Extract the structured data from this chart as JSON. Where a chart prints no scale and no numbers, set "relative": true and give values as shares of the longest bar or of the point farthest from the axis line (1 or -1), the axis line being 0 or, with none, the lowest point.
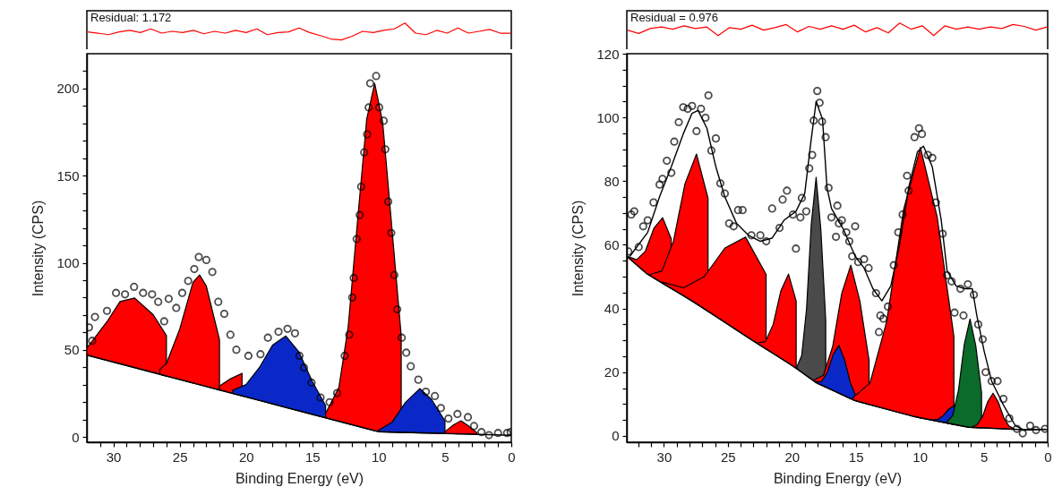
{
  "chart_data": [
    {
      "type": "line",
      "relative": true,
      "annotations": [
        "Residual: 1.172"
      ],
      "categories": [
        null,
        null,
        null,
        null,
        null,
        null,
        null,
        null,
        null,
        null,
        null,
        null,
        null,
        null,
        null,
        null,
        null,
        null,
        null,
        null,
        null,
        null,
        null,
        null,
        null,
        null,
        null,
        null,
        null,
        null,
        null,
        null,
        null,
        null,
        null,
        null,
        null,
        null,
        null,
        null,
        null
      ],
      "series": [
        {
          "color": "#ff0000",
          "values": [
            0.71,
            0.67,
            0.62,
            0.71,
            0.76,
            0.69,
            0.81,
            0.67,
            0.73,
            0.69,
            0.76,
            0.65,
            0.73,
            0.67,
            0.76,
            0.69,
            0.81,
            0.62,
            0.69,
            0.71,
            0.84,
            0.69,
            0.59,
            0.48,
            0.45,
            0.57,
            0.73,
            0.69,
            0.76,
            0.81,
            1,
            0.67,
            0.62,
            0.76,
            0.67,
            0.84,
            0.67,
            0.73,
            0.79,
            0.67,
            0.67
          ]
        }
      ]
    },
    {
      "type": "scatter",
      "xlabel": "Binding Energy (eV)",
      "ylabel": "Intensity (CPS)",
      "xlim": [
        32,
        0
      ],
      "ylim": [
        -3,
        220
      ],
      "xticks": [
        {
          "value": 31,
          "label": null
        },
        {
          "value": 30,
          "label": "30"
        },
        {
          "value": 29,
          "label": null
        },
        {
          "value": 28,
          "label": null
        },
        {
          "value": 27,
          "label": null
        },
        {
          "value": 26,
          "label": null
        },
        {
          "value": 25,
          "label": "25"
        },
        {
          "value": 24,
          "label": null
        },
        {
          "value": 23,
          "label": null
        },
        {
          "value": 22,
          "label": null
        },
        {
          "value": 21,
          "label": null
        },
        {
          "value": 20,
          "label": "20"
        },
        {
          "value": 19,
          "label": null
        },
        {
          "value": 18,
          "label": null
        },
        {
          "value": 17,
          "label": null
        },
        {
          "value": 16,
          "label": null
        },
        {
          "value": 15,
          "label": "15"
        },
        {
          "value": 14,
          "label": null
        },
        {
          "value": 13,
          "label": null
        },
        {
          "value": 12,
          "label": null
        },
        {
          "value": 11,
          "label": null
        },
        {
          "value": 10,
          "label": "10"
        },
        {
          "value": 9,
          "label": null
        },
        {
          "value": 8,
          "label": null
        },
        {
          "value": 7,
          "label": null
        },
        {
          "value": 6,
          "label": null
        },
        {
          "value": 5,
          "label": "5"
        },
        {
          "value": 4,
          "label": null
        },
        {
          "value": 3,
          "label": null
        },
        {
          "value": 2,
          "label": null
        },
        {
          "value": 1,
          "label": null
        },
        {
          "value": 0,
          "label": "0"
        }
      ],
      "yticks": [
        {
          "value": 0,
          "label": "0"
        },
        {
          "value": 10,
          "label": null
        },
        {
          "value": 20,
          "label": null
        },
        {
          "value": 30,
          "label": null
        },
        {
          "value": 40,
          "label": null
        },
        {
          "value": 50,
          "label": "50"
        },
        {
          "value": 60,
          "label": null
        },
        {
          "value": 70,
          "label": null
        },
        {
          "value": 80,
          "label": null
        },
        {
          "value": 90,
          "label": null
        },
        {
          "value": 100,
          "label": "100"
        },
        {
          "value": 110,
          "label": null
        },
        {
          "value": 120,
          "label": null
        },
        {
          "value": 130,
          "label": null
        },
        {
          "value": 140,
          "label": null
        },
        {
          "value": 150,
          "label": "150"
        },
        {
          "value": 160,
          "label": null
        },
        {
          "value": 170,
          "label": null
        },
        {
          "value": 180,
          "label": null
        },
        {
          "value": 190,
          "label": null
        },
        {
          "value": 200,
          "label": "200"
        },
        {
          "value": 210,
          "label": null
        }
      ],
      "series": [
        {
          "type": "line",
          "color": "#000000",
          "x": [
            32,
            28,
            24,
            20,
            16,
            12,
            10,
            5,
            0
          ],
          "values": [
            47,
            39,
            31,
            23,
            15,
            7,
            3,
            2,
            1
          ]
        },
        {
          "type": "area",
          "color": "#ff0000",
          "x": [
            26,
            27,
            28.4,
            29.5,
            30.5,
            31.5,
            32
          ],
          "values": [
            58.2,
            70.2,
            79.8,
            77.7,
            66,
            56,
            51
          ]
        },
        {
          "type": "area",
          "color": "#ff0000",
          "x": [
            26.5,
            26,
            25,
            24,
            23.5,
            23,
            22
          ],
          "values": [
            38.8,
            42.2,
            61.9,
            88.8,
            93,
            86.8,
            55.9
          ]
        },
        {
          "type": "area",
          "color": "#ff0000",
          "x": [
            22,
            21.2,
            20.3
          ],
          "values": [
            29.2,
            33.3,
            36.6
          ]
        },
        {
          "type": "area",
          "color": "#0a28c8",
          "x": [
            21,
            20,
            19,
            18,
            17,
            16,
            15,
            14
          ],
          "values": [
            26.8,
            30.1,
            39.8,
            52.7,
            58,
            48.7,
            31.8,
            18.1
          ]
        },
        {
          "type": "area",
          "color": "#ff0000",
          "x": [
            14,
            13,
            12.3,
            11.5,
            10.9,
            10.3,
            9.7,
            9.1,
            8.3
          ],
          "values": [
            13.5,
            28.4,
            63,
            131.9,
            182.6,
            203,
            180.8,
            128.6,
            58.1
          ]
        },
        {
          "type": "area",
          "color": "#0a28c8",
          "x": [
            10,
            9,
            8,
            6.9,
            6,
            5
          ],
          "values": [
            3.9,
            8.4,
            19.7,
            27.8,
            21.4,
            9.2
          ]
        },
        {
          "type": "area",
          "color": "#ff0000",
          "x": [
            5,
            4.4,
            3.8,
            3.2,
            2.6
          ],
          "values": [
            3.1,
            6.7,
            9.3,
            6.2,
            2.5
          ]
        },
        {
          "color": "#000000",
          "marker": "circle",
          "x": [
            31.84,
            31.6,
            31.39,
            30.48,
            29.8,
            29.12,
            28.44,
            27.76,
            27.08,
            26.62,
            26.17,
            25.83,
            25.26,
            24.81,
            24.36,
            23.9,
            23.56,
            22.99,
            22.54,
            22.09,
            21.64,
            21.18,
            20.73,
            19.82,
            18.91,
            18.35,
            17.55,
            16.87,
            16.31,
            15.97,
            15.63,
            15.06,
            14.38,
            13.7,
            13.13,
            12.56,
            12.22,
            11.99,
            11.88,
            11.66,
            11.43,
            11.32,
            11.09,
            10.87,
            10.75,
            10.64,
            10.19,
            9.96,
            9.62,
            9.5,
            9.28,
            9.05,
            8.82,
            8.6,
            8.26,
            7.92,
            7.58,
            7.01,
            6.44,
            5.76,
            5.31,
            4.74,
            4.06,
            3.27,
            2.81,
            2.25,
            1.68,
            1.0,
            0.32,
            0.05
          ],
          "values": [
            62.9,
            55.2,
            68.9,
            72.4,
            82.7,
            81.9,
            86.2,
            82.7,
            81.9,
            77.6,
            66.4,
            79.3,
            74.1,
            82.7,
            89.6,
            96.4,
            103.3,
            101.6,
            94.7,
            77.6,
            70.7,
            58.7,
            50.1,
            46.6,
            47.5,
            57,
            60.4,
            62.1,
            59.5,
            46.6,
            39.8,
            31.2,
            22.6,
            20,
            25.2,
            46.6,
            58.7,
            80.1,
            91.3,
            113.6,
            127.4,
            143.7,
            163.4,
            173.7,
            189.2,
            203,
            207.2,
            189.2,
            181.5,
            165.1,
            135.1,
            117.1,
            93,
            73.3,
            57,
            48.4,
            40.6,
            32.9,
            26,
            23.5,
            16.6,
            10.6,
            13.2,
            11.4,
            6.3,
            2.8,
            1.1,
            2.3,
            2.3,
            2.8
          ]
        }
      ]
    },
    {
      "type": "line",
      "relative": true,
      "annotations": [
        "Residual = 0.976"
      ],
      "categories": [
        null,
        null,
        null,
        null,
        null,
        null,
        null,
        null,
        null,
        null,
        null,
        null,
        null,
        null,
        null,
        null,
        null,
        null,
        null,
        null,
        null,
        null,
        null,
        null,
        null,
        null,
        null,
        null,
        null,
        null,
        null,
        null,
        null,
        null,
        null,
        null,
        null,
        null
      ],
      "series": [
        {
          "color": "#ff0000",
          "values": [
            0.77,
            0.66,
            0.82,
            0.87,
            0.8,
            0.91,
            0.82,
            0.87,
            0.59,
            0.85,
            0.8,
            0.93,
            0.77,
            0.85,
            0.95,
            0.71,
            0.89,
            0.8,
            0.91,
            0.8,
            0.93,
            0.71,
            0.85,
            0.68,
            1,
            0.8,
            0.91,
            0.59,
            0.91,
            0.8,
            0.87,
            0.8,
            0.87,
            0.82,
            0.95,
            0.89,
            0.77,
            0.87
          ]
        }
      ]
    },
    {
      "type": "scatter",
      "xlabel": "Binding Energy (eV)",
      "ylabel": "Intensity (CPS)",
      "xlim": [
        32.9,
        0
      ],
      "ylim": [
        -2,
        120
      ],
      "xticks": [
        {
          "value": 32,
          "label": null
        },
        {
          "value": 31,
          "label": null
        },
        {
          "value": 30,
          "label": "30"
        },
        {
          "value": 29,
          "label": null
        },
        {
          "value": 28,
          "label": null
        },
        {
          "value": 27,
          "label": null
        },
        {
          "value": 26,
          "label": null
        },
        {
          "value": 25,
          "label": "25"
        },
        {
          "value": 24,
          "label": null
        },
        {
          "value": 23,
          "label": null
        },
        {
          "value": 22,
          "label": null
        },
        {
          "value": 21,
          "label": null
        },
        {
          "value": 20,
          "label": "20"
        },
        {
          "value": 19,
          "label": null
        },
        {
          "value": 18,
          "label": null
        },
        {
          "value": 17,
          "label": null
        },
        {
          "value": 16,
          "label": null
        },
        {
          "value": 15,
          "label": "15"
        },
        {
          "value": 14,
          "label": null
        },
        {
          "value": 13,
          "label": null
        },
        {
          "value": 12,
          "label": null
        },
        {
          "value": 11,
          "label": null
        },
        {
          "value": 10,
          "label": "10"
        },
        {
          "value": 9,
          "label": null
        },
        {
          "value": 8,
          "label": null
        },
        {
          "value": 7,
          "label": null
        },
        {
          "value": 6,
          "label": null
        },
        {
          "value": 5,
          "label": "5"
        },
        {
          "value": 4,
          "label": null
        },
        {
          "value": 3,
          "label": null
        },
        {
          "value": 2,
          "label": null
        },
        {
          "value": 1,
          "label": null
        },
        {
          "value": 0,
          "label": "0"
        }
      ],
      "yticks": [
        {
          "value": 0,
          "label": "0"
        },
        {
          "value": 5,
          "label": null
        },
        {
          "value": 10,
          "label": null
        },
        {
          "value": 15,
          "label": null
        },
        {
          "value": 20,
          "label": "20"
        },
        {
          "value": 25,
          "label": null
        },
        {
          "value": 30,
          "label": null
        },
        {
          "value": 35,
          "label": null
        },
        {
          "value": 40,
          "label": "40"
        },
        {
          "value": 45,
          "label": null
        },
        {
          "value": 50,
          "label": null
        },
        {
          "value": 55,
          "label": null
        },
        {
          "value": 60,
          "label": "60"
        },
        {
          "value": 65,
          "label": null
        },
        {
          "value": 70,
          "label": null
        },
        {
          "value": 75,
          "label": null
        },
        {
          "value": 80,
          "label": "80"
        },
        {
          "value": 85,
          "label": null
        },
        {
          "value": 90,
          "label": null
        },
        {
          "value": 95,
          "label": null
        },
        {
          "value": 100,
          "label": "100"
        },
        {
          "value": 105,
          "label": null
        },
        {
          "value": 110,
          "label": null
        },
        {
          "value": 115,
          "label": null
        },
        {
          "value": 120,
          "label": "120"
        }
      ],
      "series": [
        {
          "type": "line",
          "color": "#000000",
          "x": [
            32.9,
            31.3,
            27.8,
            23.2,
            19.9,
            18.1,
            15.1,
            10.4,
            6.2,
            2.3,
            0
          ],
          "values": [
            56.4,
            50.8,
            42.4,
            30.3,
            21.9,
            16.7,
            11.1,
            6,
            2.7,
            2,
            2
          ]
        },
        {
          "type": "area",
          "color": "#ff0000",
          "x": [
            32.8,
            32.13,
            31.45,
            30.78,
            30.1,
            29.43
          ],
          "values": [
            56.3,
            55.3,
            58,
            65.2,
            68.5,
            61.9
          ]
        },
        {
          "type": "area",
          "color": "#ff0000",
          "x": [
            31.05,
            30.15,
            29.25,
            28.35,
            27.45,
            26.55
          ],
          "values": [
            50.7,
            51.8,
            61.2,
            79.2,
            88.5,
            74.6
          ]
        },
        {
          "type": "area",
          "color": "#ff0000",
          "x": [
            30.07,
            28.46,
            26.85,
            25.23,
            23.62,
            22.01
          ],
          "values": [
            48.2,
            46.5,
            50,
            59,
            62.4,
            50.7
          ]
        },
        {
          "type": "area",
          "color": "#ff0000",
          "x": [
            22.66,
            22.06,
            21.46,
            20.86,
            20.26,
            19.66
          ],
          "values": [
            29.2,
            29.6,
            35,
            45.5,
            50.8,
            42.3
          ]
        },
        {
          "type": "area",
          "color": "#4a4a4a",
          "x": [
            19.6,
            19.23,
            18.85,
            18.48,
            18.1,
            17.73,
            17.35
          ],
          "values": [
            21.7,
            25.2,
            39.9,
            66.5,
            81.2,
            64.7,
            36.3
          ]
        },
        {
          "type": "area",
          "color": "#ff0000",
          "x": [
            18.24,
            17.53,
            16.81,
            16.1,
            15.39,
            14.68,
            13.96
          ],
          "values": [
            17.6,
            19,
            28,
            44.7,
            53.6,
            42.3,
            23.6
          ]
        },
        {
          "type": "area",
          "color": "#0a28c8",
          "x": [
            18.12,
            17.67,
            17.22,
            16.77,
            16.32,
            15.87,
            15.42,
            14.97,
            14.52
          ],
          "values": [
            17,
            17.1,
            20,
            25.5,
            28.4,
            23.8,
            16.6,
            12.2,
            10.7
          ]
        },
        {
          "type": "area",
          "color": "#ff0000",
          "x": [
            15.2,
            13.89,
            12.58,
            11.26,
            9.95,
            8.64,
            7.33
          ],
          "values": [
            12.1,
            16.6,
            36,
            71.1,
            90.6,
            68.8,
            31.2
          ]
        },
        {
          "type": "area",
          "color": "#0a28c8",
          "x": [
            9.08,
            8.63,
            8.18,
            7.73,
            7.28
          ],
          "values": [
            5.1,
            5.1,
            6.3,
            8.4,
            9.6
          ]
        },
        {
          "type": "area",
          "color": "#0a6b2a",
          "x": [
            7.87,
            7.42,
            6.97,
            6.52,
            6.07,
            5.62,
            5.17
          ],
          "values": [
            4.4,
            6.4,
            14.4,
            28.7,
            36.7,
            28.3,
            13.6
          ]
        },
        {
          "type": "area",
          "color": "#ff0000",
          "x": [
            5.92,
            5.51,
            5.09,
            4.68,
            4.27,
            3.86,
            3.44,
            3.03,
            2.62
          ],
          "values": [
            2.8,
            3.5,
            6.1,
            10.8,
            13.4,
            10.6,
            5.8,
            3.1,
            2.2
          ]
        },
        {
          "type": "line",
          "color": "#000000",
          "x": [
            32.66,
            31.27,
            30.34,
            29.42,
            28.49,
            27.8,
            27.33,
            26.64,
            25.94,
            25.24,
            24.32,
            23.39,
            22.46,
            21.54,
            20.61,
            19.68,
            18.99,
            18.52,
            18.1,
            17.6,
            17.25,
            16.9,
            15.97,
            15.05,
            14.35,
            13.66,
            12.96,
            12.26,
            11.57,
            10.87,
            10.18,
            9.71,
            9.02,
            8.32,
            7.86,
            7.16,
            6.47,
            5.89,
            5.54,
            4.96,
            4.38,
            3.46,
            2.53,
            1.83,
            0.2
          ],
          "values": [
            56.4,
            63.9,
            75.1,
            84.5,
            94.8,
            101.3,
            102.2,
            96.6,
            84.5,
            75.1,
            66.7,
            63,
            61.1,
            62.1,
            67.7,
            70.5,
            76.1,
            92,
            105,
            99.4,
            77.9,
            71.4,
            64.9,
            56.4,
            52.7,
            46.2,
            42.4,
            47.1,
            60.2,
            77.9,
            89.2,
            91,
            84.5,
            67.7,
            51.8,
            47.1,
            46.2,
            46.2,
            37.8,
            26.5,
            17.2,
            9.7,
            3.2,
            1.8,
            2.1
          ]
        },
        {
          "color": "#000000",
          "marker": "circle",
          "x": [
            32.78,
            32.55,
            32.32,
            31.97,
            31.62,
            31.27,
            30.81,
            30.34,
            30.11,
            29.77,
            29.42,
            29.19,
            28.84,
            28.49,
            28.14,
            27.8,
            27.45,
            27.1,
            26.75,
            26.52,
            26.29,
            25.94,
            25.59,
            25.24,
            24.9,
            24.55,
            24.2,
            23.85,
            23.16,
            22.46,
            22,
            21.54,
            20.96,
            20.72,
            20.38,
            19.91,
            19.68,
            19.33,
            19.22,
            18.87,
            18.64,
            18.41,
            18.29,
            18.01,
            17.83,
            17.64,
            17.36,
            17.13,
            16.9,
            16.55,
            16.44,
            16.32,
            16.09,
            15.74,
            15.51,
            15.28,
            15.05,
            14.81,
            14.35,
            14,
            13.42,
            13.19,
            13.08,
            12.84,
            12.49,
            12.03,
            11.68,
            11.34,
            10.99,
            10.87,
            10.41,
            10.06,
            9.83,
            9.37,
            9.02,
            8.74,
            8.21,
            7.86,
            7.51,
            7.28,
            6.82,
            6.58,
            6.24,
            5.77,
            5.43,
            5.08,
            4.85,
            4.38,
            3.92,
            3.46,
            3,
            2.41,
            1.95,
            1.37,
            0.91,
            0.21
          ],
          "values": [
            57.9,
            69.5,
            70.5,
            59.3,
            65.8,
            67.7,
            73.3,
            78.9,
            80.7,
            86.4,
            82.6,
            92.4,
            98.5,
            103.2,
            102.7,
            103.6,
            95.7,
            102.7,
            99.9,
            106.9,
            89.6,
            93.4,
            79.3,
            76.1,
            66.7,
            65.8,
            70.9,
            70.9,
            63,
            63,
            61.1,
            71.4,
            65.3,
            74.2,
            77,
            69.5,
            58.8,
            68.6,
            74.7,
            70.5,
            84,
            88.2,
            99,
            108.3,
            104.6,
            98.7,
            93.8,
            77.9,
            68.6,
            62.5,
            72.3,
            66.7,
            67.7,
            63.9,
            61.1,
            56.4,
            65.8,
            54.6,
            55.5,
            52.7,
            44.8,
            32.6,
            37.8,
            36.8,
            40.6,
            53.6,
            63.9,
            69.5,
            81.7,
            77,
            93.8,
            96.6,
            94.8,
            88.2,
            87.3,
            73.3,
            63.5,
            50.4,
            48.5,
            38.7,
            46.2,
            37.8,
            47.6,
            44.3,
            35,
            30.3,
            20,
            17.2,
            17.2,
            11.6,
            5.5,
            2.2,
            0.8,
            3.2,
            1.8,
            2.2
          ]
        }
      ]
    }
  ]
}
